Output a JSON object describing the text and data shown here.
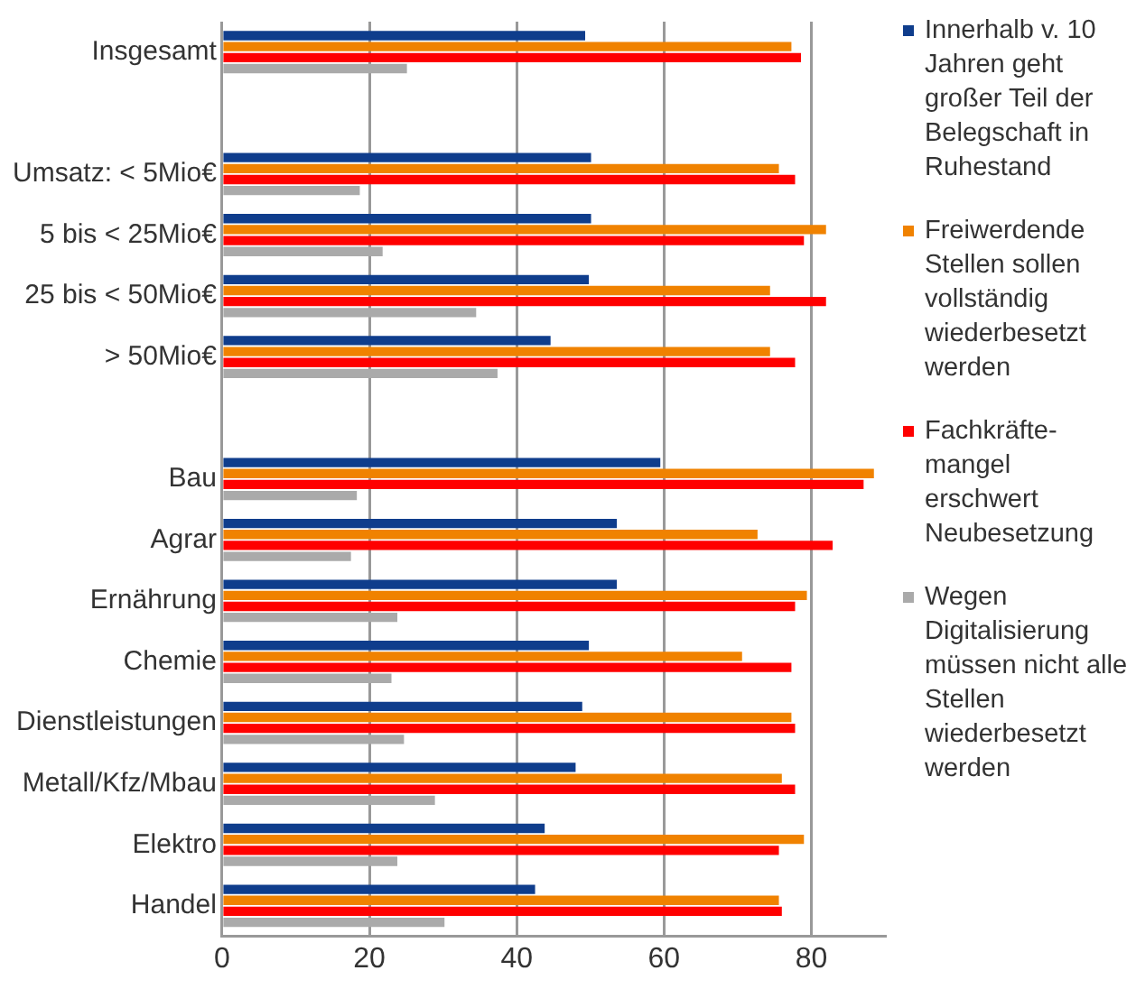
{
  "chart_data": {
    "type": "bar",
    "orientation": "horizontal",
    "categories": [
      "Insgesamt",
      null,
      "Umsatz: < 5Mio€",
      "5 bis < 25Mio€",
      "25 bis < 50Mio€",
      "> 50Mio€",
      null,
      "Bau",
      "Agrar",
      "Ernährung",
      "Chemie",
      "Dienstleistungen",
      "Metall/Kfz/Mbau",
      "Elektro",
      "Handel"
    ],
    "series": [
      {
        "name": "Innerhalb v. 10 Jahren geht großer Teil der Belegschaft in Ruhestand",
        "color": "#0f3d8c",
        "values": [
          49.3,
          null,
          50.1,
          50.1,
          49.8,
          44.6,
          null,
          59.5,
          53.6,
          53.6,
          49.8,
          48.9,
          48.0,
          43.8,
          42.5
        ]
      },
      {
        "name": "Freiwerdende Stellen sollen vollständig wiederbesetzt werden",
        "color": "#f08200",
        "values": [
          77.3,
          null,
          75.6,
          82.0,
          74.4,
          74.4,
          null,
          88.5,
          72.7,
          79.4,
          70.6,
          77.3,
          76.0,
          79.0,
          75.6
        ]
      },
      {
        "name": "Fachkräfte-mangel erschwert Neubesetzung",
        "color": "#ff0000",
        "values": [
          78.6,
          null,
          77.8,
          79.0,
          82.0,
          77.8,
          null,
          87.1,
          82.9,
          77.8,
          77.3,
          77.8,
          77.8,
          75.6,
          76.0
        ]
      },
      {
        "name": "Wegen Digitalisierung müssen nicht alle Stellen wiederbesetzt werden",
        "color": "#aaaaaa",
        "values": [
          25.1,
          null,
          18.7,
          21.8,
          34.5,
          37.4,
          null,
          18.3,
          17.5,
          23.8,
          23.0,
          24.7,
          28.9,
          23.8,
          30.2
        ]
      }
    ],
    "xlim": [
      0,
      90
    ],
    "xticks": [
      0,
      20,
      40,
      60,
      80
    ],
    "grid": "x",
    "legend": "right"
  }
}
